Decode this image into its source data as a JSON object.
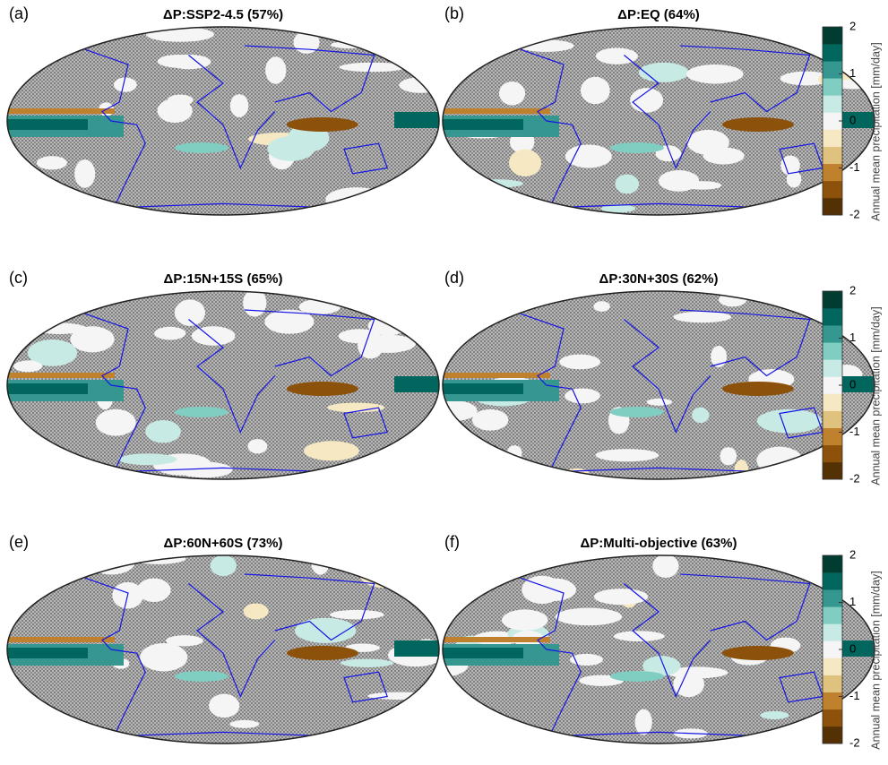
{
  "panels": [
    {
      "label": "(a)",
      "title": "ΔP:SSP2-4.5 (57%)"
    },
    {
      "label": "(b)",
      "title": "ΔP:EQ (64%)"
    },
    {
      "label": "(c)",
      "title": "ΔP:15N+15S (65%)"
    },
    {
      "label": "(d)",
      "title": "ΔP:30N+30S (62%)"
    },
    {
      "label": "(e)",
      "title": "ΔP:60N+60S (73%)"
    },
    {
      "label": "(f)",
      "title": "ΔP:Multi-objective (63%)"
    }
  ],
  "colorbar": {
    "label": "Annual mean precipitation [mm/day]",
    "lim": [
      -2,
      2
    ],
    "ticks": [
      2,
      1,
      0,
      -1,
      -2
    ],
    "colors": [
      "#543005",
      "#8c510a",
      "#bf812d",
      "#dfc27d",
      "#f6e8c3",
      "#f5f5f5",
      "#c7eae5",
      "#80cdc1",
      "#35978f",
      "#01665e",
      "#003c30"
    ]
  }
}
